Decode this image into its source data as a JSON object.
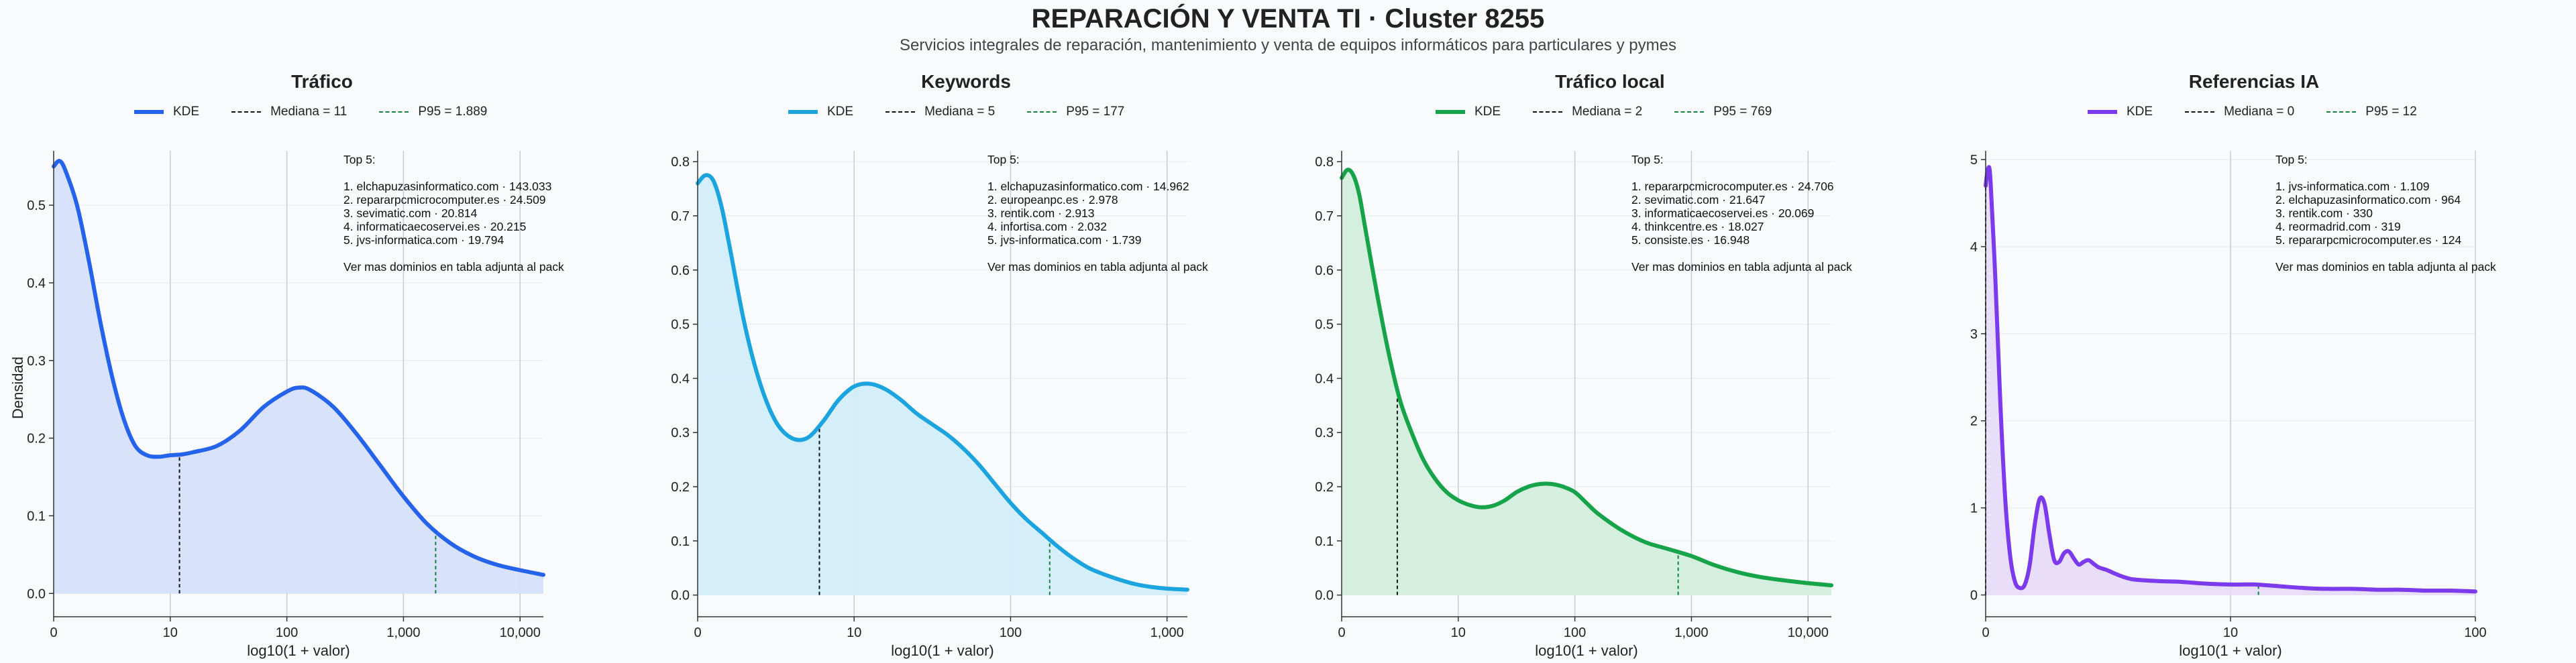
{
  "title": "REPARACIÓN Y VENTA TI · Cluster 8255",
  "subtitle": "Servicios integrales de reparación, mantenimiento y venta de equipos informáticos para particulares y pymes",
  "legend_labels": {
    "kde": "KDE"
  },
  "chart_data": [
    {
      "type": "area",
      "title": "Tráfico",
      "xlabel": "log10(1 + valor)",
      "ylabel": "Densidad",
      "color": "#2563eb",
      "fill": "#d6e0fa",
      "xlim": [
        0,
        4.2
      ],
      "ylim": [
        -0.03,
        0.57
      ],
      "xticks": [
        0,
        1,
        2,
        3,
        4
      ],
      "xtick_labels": [
        "0",
        "10",
        "100",
        "1,000",
        "10,000"
      ],
      "yticks": [
        0,
        0.1,
        0.2,
        0.3,
        0.4,
        0.5
      ],
      "ytick_labels": [
        "0.0",
        "0.1",
        "0.2",
        "0.3",
        "0.4",
        "0.5"
      ],
      "median": {
        "label": "Mediana = 11",
        "x": 1.079,
        "color": "#111111"
      },
      "p95": {
        "label": "P95 = 1.889",
        "x": 3.276,
        "color": "#15803d"
      },
      "x": [
        0,
        0.05,
        0.1,
        0.2,
        0.3,
        0.4,
        0.5,
        0.6,
        0.7,
        0.8,
        0.9,
        1.0,
        1.1,
        1.2,
        1.4,
        1.6,
        1.8,
        2.0,
        2.1,
        2.2,
        2.4,
        2.6,
        2.8,
        3.0,
        3.2,
        3.4,
        3.6,
        3.8,
        4.0,
        4.2
      ],
      "y": [
        0.55,
        0.557,
        0.545,
        0.5,
        0.43,
        0.35,
        0.28,
        0.225,
        0.19,
        0.178,
        0.176,
        0.178,
        0.179,
        0.182,
        0.19,
        0.21,
        0.24,
        0.26,
        0.265,
        0.262,
        0.24,
        0.205,
        0.165,
        0.125,
        0.09,
        0.065,
        0.048,
        0.037,
        0.03,
        0.024
      ],
      "annotation": [
        "Top 5:",
        "",
        "1. elchapuzasinformatico.com · 143.033",
        "2. repararpcmicrocomputer.es · 24.509",
        "3. sevimatic.com · 20.814",
        "4. informaticaecoservei.es · 20.215",
        "5. jvs-informatica.com · 19.794",
        "",
        "Ver mas dominios en tabla adjunta al pack"
      ]
    },
    {
      "type": "area",
      "title": "Keywords",
      "xlabel": "log10(1 + valor)",
      "ylabel": "",
      "color": "#1ba4dd",
      "fill": "#d2eefa",
      "xlim": [
        0,
        3.13
      ],
      "ylim": [
        -0.04,
        0.82
      ],
      "xticks": [
        0,
        1,
        2,
        3
      ],
      "xtick_labels": [
        "0",
        "10",
        "100",
        "1,000"
      ],
      "yticks": [
        0,
        0.1,
        0.2,
        0.3,
        0.4,
        0.5,
        0.6,
        0.7,
        0.8
      ],
      "ytick_labels": [
        "0.0",
        "0.1",
        "0.2",
        "0.3",
        "0.4",
        "0.5",
        "0.6",
        "0.7",
        "0.8"
      ],
      "median": {
        "label": "Mediana = 5",
        "x": 0.778,
        "color": "#111111"
      },
      "p95": {
        "label": "P95 = 177",
        "x": 2.25,
        "color": "#15803d"
      },
      "x": [
        0,
        0.05,
        0.1,
        0.15,
        0.2,
        0.3,
        0.4,
        0.5,
        0.6,
        0.7,
        0.8,
        0.9,
        1.0,
        1.1,
        1.2,
        1.3,
        1.4,
        1.5,
        1.6,
        1.7,
        1.8,
        1.9,
        2.0,
        2.1,
        2.2,
        2.3,
        2.4,
        2.5,
        2.6,
        2.7,
        2.8,
        2.9,
        3.0,
        3.13
      ],
      "y": [
        0.76,
        0.775,
        0.765,
        0.72,
        0.65,
        0.5,
        0.39,
        0.32,
        0.29,
        0.29,
        0.32,
        0.36,
        0.385,
        0.39,
        0.38,
        0.36,
        0.335,
        0.315,
        0.295,
        0.27,
        0.24,
        0.205,
        0.17,
        0.14,
        0.115,
        0.09,
        0.068,
        0.05,
        0.038,
        0.028,
        0.02,
        0.015,
        0.012,
        0.01
      ],
      "annotation": [
        "Top 5:",
        "",
        "1. elchapuzasinformatico.com · 14.962",
        "2. europeanpc.es · 2.978",
        "3. rentik.com · 2.913",
        "4. infortisa.com · 2.032",
        "5. jvs-informatica.com · 1.739",
        "",
        "Ver mas dominios en tabla adjunta al pack"
      ]
    },
    {
      "type": "area",
      "title": "Tráfico local",
      "xlabel": "log10(1 + valor)",
      "ylabel": "",
      "color": "#16a34a",
      "fill": "#d3eedc",
      "xlim": [
        0,
        4.2
      ],
      "ylim": [
        -0.04,
        0.82
      ],
      "xticks": [
        0,
        1,
        2,
        3,
        4
      ],
      "xtick_labels": [
        "0",
        "10",
        "100",
        "1,000",
        "10,000"
      ],
      "yticks": [
        0,
        0.1,
        0.2,
        0.3,
        0.4,
        0.5,
        0.6,
        0.7,
        0.8
      ],
      "ytick_labels": [
        "0.0",
        "0.1",
        "0.2",
        "0.3",
        "0.4",
        "0.5",
        "0.6",
        "0.7",
        "0.8"
      ],
      "median": {
        "label": "Mediana = 2",
        "x": 0.477,
        "color": "#111111"
      },
      "p95": {
        "label": "P95 = 769",
        "x": 2.886,
        "color": "#15803d"
      },
      "x": [
        0,
        0.05,
        0.1,
        0.15,
        0.2,
        0.3,
        0.4,
        0.5,
        0.6,
        0.7,
        0.8,
        0.9,
        1.0,
        1.1,
        1.2,
        1.3,
        1.4,
        1.5,
        1.6,
        1.7,
        1.8,
        1.9,
        2.0,
        2.1,
        2.2,
        2.4,
        2.6,
        2.8,
        3.0,
        3.2,
        3.4,
        3.6,
        3.8,
        4.0,
        4.2
      ],
      "y": [
        0.77,
        0.785,
        0.775,
        0.74,
        0.68,
        0.56,
        0.45,
        0.36,
        0.3,
        0.25,
        0.215,
        0.19,
        0.175,
        0.166,
        0.162,
        0.165,
        0.175,
        0.19,
        0.2,
        0.205,
        0.205,
        0.2,
        0.19,
        0.17,
        0.15,
        0.12,
        0.098,
        0.085,
        0.072,
        0.055,
        0.042,
        0.033,
        0.027,
        0.022,
        0.018
      ],
      "annotation": [
        "Top 5:",
        "",
        "1. repararpcmicrocomputer.es · 24.706",
        "2. sevimatic.com · 21.647",
        "3. informaticaecoservei.es · 20.069",
        "4. thinkcentre.es · 18.027",
        "5. consiste.es · 16.948",
        "",
        "Ver mas dominios en tabla adjunta al pack"
      ]
    },
    {
      "type": "area",
      "title": "Referencias IA",
      "xlabel": "log10(1 + valor)",
      "ylabel": "",
      "color": "#7c3aed",
      "fill": "#e8dcfa",
      "xlim": [
        0,
        2.0
      ],
      "ylim": [
        -0.25,
        5.1
      ],
      "xticks": [
        0,
        1,
        2
      ],
      "xtick_labels": [
        "0",
        "10",
        "100"
      ],
      "yticks": [
        0,
        1,
        2,
        3,
        4,
        5
      ],
      "ytick_labels": [
        "0",
        "1",
        "2",
        "3",
        "4",
        "5"
      ],
      "median": {
        "label": "Mediana = 0",
        "x": 0.0,
        "color": "#111111"
      },
      "p95": {
        "label": "P95 = 12",
        "x": 1.114,
        "color": "#15803d"
      },
      "x": [
        0,
        0.01,
        0.02,
        0.04,
        0.06,
        0.08,
        0.1,
        0.12,
        0.14,
        0.16,
        0.18,
        0.2,
        0.22,
        0.24,
        0.26,
        0.28,
        0.3,
        0.32,
        0.34,
        0.36,
        0.38,
        0.4,
        0.42,
        0.44,
        0.46,
        0.48,
        0.5,
        0.55,
        0.6,
        0.7,
        0.8,
        0.9,
        1.0,
        1.1,
        1.2,
        1.3,
        1.4,
        1.5,
        1.6,
        1.7,
        1.8,
        1.9,
        2.0
      ],
      "y": [
        4.7,
        4.9,
        4.75,
        3.6,
        2.2,
        1.1,
        0.45,
        0.15,
        0.08,
        0.12,
        0.35,
        0.8,
        1.1,
        1.05,
        0.7,
        0.4,
        0.38,
        0.48,
        0.5,
        0.42,
        0.35,
        0.38,
        0.4,
        0.36,
        0.32,
        0.3,
        0.28,
        0.22,
        0.18,
        0.16,
        0.15,
        0.13,
        0.12,
        0.12,
        0.1,
        0.08,
        0.07,
        0.07,
        0.06,
        0.06,
        0.05,
        0.05,
        0.04
      ],
      "annotation": [
        "Top 5:",
        "",
        "1. jvs-informatica.com · 1.109",
        "2. elchapuzasinformatico.com · 964",
        "3. rentik.com · 330",
        "4. reormadrid.com · 319",
        "5. repararpcmicrocomputer.es · 124",
        "",
        "Ver mas dominios en tabla adjunta al pack"
      ]
    }
  ]
}
